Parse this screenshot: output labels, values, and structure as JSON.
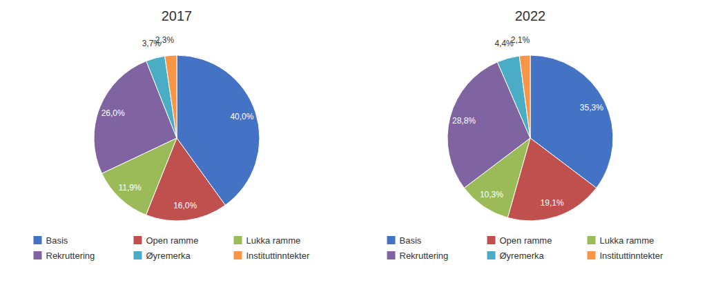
{
  "chart_data": [
    {
      "type": "pie",
      "title": "2017",
      "categories": [
        "Basis",
        "Open ramme",
        "Lukka ramme",
        "Rekruttering",
        "Øyremerka",
        "Instituttinntekter"
      ],
      "values": [
        40.0,
        16.0,
        11.9,
        26.0,
        3.7,
        2.3
      ],
      "value_labels": [
        "40,0%",
        "16,0%",
        "11,9%",
        "26,0%",
        "3,7%",
        "2,3%"
      ],
      "colors": [
        "#4472C4",
        "#C0504D",
        "#9BBB59",
        "#8064A2",
        "#4BACC6",
        "#F79646"
      ],
      "data_labels": true,
      "legend": "bottom"
    },
    {
      "type": "pie",
      "title": "2022",
      "categories": [
        "Basis",
        "Open ramme",
        "Lukka ramme",
        "Rekruttering",
        "Øyremerka",
        "Instituttinntekter"
      ],
      "values": [
        35.3,
        19.1,
        10.3,
        28.8,
        4.4,
        2.1
      ],
      "value_labels": [
        "35,3%",
        "19,1%",
        "10,3%",
        "28,8%",
        "4,4%",
        "2,1%"
      ],
      "colors": [
        "#4472C4",
        "#C0504D",
        "#9BBB59",
        "#8064A2",
        "#4BACC6",
        "#F79646"
      ],
      "data_labels": true,
      "legend": "bottom"
    }
  ]
}
